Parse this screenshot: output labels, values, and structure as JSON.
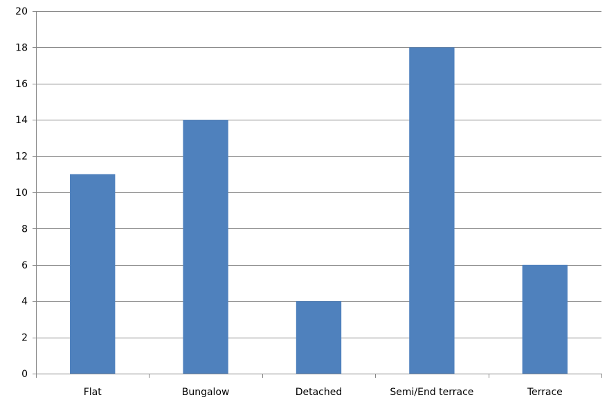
{
  "chart_data": {
    "type": "bar",
    "categories": [
      "Flat",
      "Bungalow",
      "Detached",
      "Semi/End terrace",
      "Terrace"
    ],
    "values": [
      11,
      14,
      4,
      18,
      6
    ],
    "title": "",
    "xlabel": "",
    "ylabel": "",
    "ylim": [
      0,
      20
    ],
    "yticks": [
      0,
      2,
      4,
      6,
      8,
      10,
      12,
      14,
      16,
      18,
      20
    ],
    "ytick_labels": [
      "0",
      "2",
      "4",
      "6",
      "8",
      "10",
      "12",
      "14",
      "16",
      "18",
      "20"
    ],
    "grid": true,
    "legend": "none",
    "bar_color": "#4F81BD",
    "grid_color": "#868686",
    "axis_color": "#868686"
  }
}
